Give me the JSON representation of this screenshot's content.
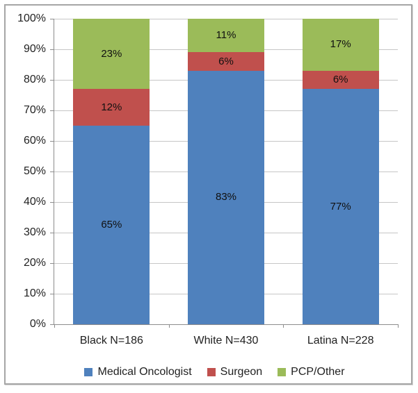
{
  "chart_data": {
    "type": "bar",
    "stacked": true,
    "percent_stacked": true,
    "categories": [
      "Black N=186",
      "White N=430",
      "Latina N=228"
    ],
    "series": [
      {
        "name": "Medical Oncologist",
        "color": "#4F81BD",
        "values": [
          65,
          83,
          77
        ],
        "labels": [
          "65%",
          "83%",
          "77%"
        ]
      },
      {
        "name": "Surgeon",
        "color": "#C0504D",
        "values": [
          12,
          6,
          6
        ],
        "labels": [
          "12%",
          "6%",
          "6%"
        ]
      },
      {
        "name": "PCP/Other",
        "color": "#9BBB59",
        "values": [
          23,
          11,
          17
        ],
        "labels": [
          "23%",
          "11%",
          "17%"
        ]
      }
    ],
    "yticks": [
      "0%",
      "10%",
      "20%",
      "30%",
      "40%",
      "50%",
      "60%",
      "70%",
      "80%",
      "90%",
      "100%"
    ],
    "ylim": [
      0,
      100
    ],
    "ytick_step": 10,
    "grid": true,
    "legend_position": "bottom"
  },
  "colors": {
    "background": "#FFFFFF",
    "frame_border": "#A6A6A6",
    "gridline": "#C6C6C6",
    "axis": "#8C8C8C",
    "tick_text": "#1F1F1F",
    "data_label_text": "#101010"
  }
}
